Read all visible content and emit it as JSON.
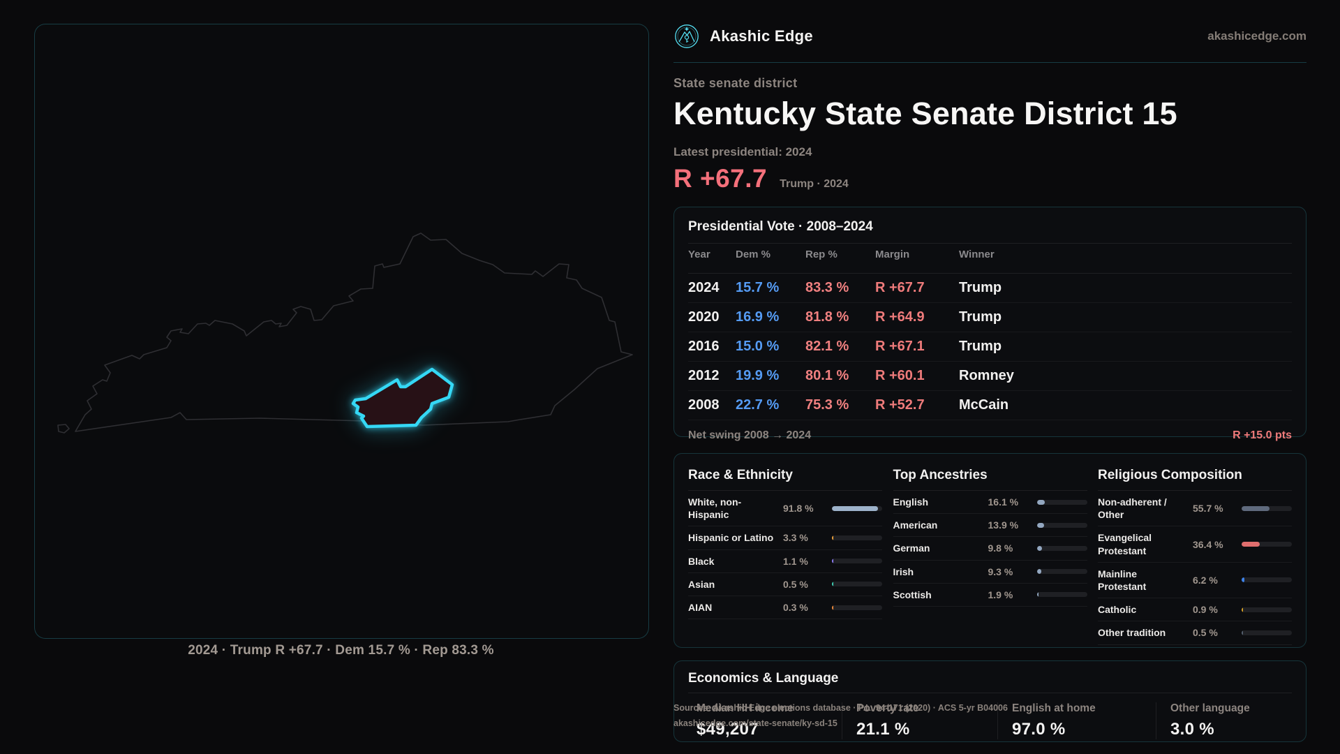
{
  "colors": {
    "accent_cyan": "#35d8f5",
    "dem_blue": "#559bf3",
    "rep_red": "#f08080",
    "margin_red": "#f4707b"
  },
  "header": {
    "brand": "Akashic Edge",
    "site": "akashicedge.com"
  },
  "hero": {
    "kicker": "State senate district",
    "title": "Kentucky State Senate District 15",
    "latest_label": "Latest presidential: 2024",
    "margin_value": "R +67.7",
    "margin_note": "Trump · 2024"
  },
  "map": {
    "caption": "2024 · Trump R +67.7 · Dem 15.7 % · Rep 83.3 %"
  },
  "pres_table": {
    "title": "Presidential Vote · 2008–2024",
    "columns": [
      "Year",
      "Dem %",
      "Rep %",
      "Margin",
      "Winner"
    ],
    "rows": [
      {
        "year": "2024",
        "dem": "15.7 %",
        "rep": "83.3 %",
        "margin": "R +67.7",
        "winner": "Trump"
      },
      {
        "year": "2020",
        "dem": "16.9 %",
        "rep": "81.8 %",
        "margin": "R +64.9",
        "winner": "Trump"
      },
      {
        "year": "2016",
        "dem": "15.0 %",
        "rep": "82.1 %",
        "margin": "R +67.1",
        "winner": "Trump"
      },
      {
        "year": "2012",
        "dem": "19.9 %",
        "rep": "80.1 %",
        "margin": "R +60.1",
        "winner": "Romney"
      },
      {
        "year": "2008",
        "dem": "22.7 %",
        "rep": "75.3 %",
        "margin": "R +52.7",
        "winner": "McCain"
      }
    ],
    "footer_label": "Net swing 2008 → 2024",
    "footer_value": "R +15.0 pts"
  },
  "demographics": {
    "race": {
      "title": "Race & Ethnicity",
      "rows": [
        {
          "label": "White, non-Hispanic",
          "value": "91.8 %",
          "pct": 91.8,
          "color": "#9db2ca"
        },
        {
          "label": "Hispanic or Latino",
          "value": "3.3 %",
          "pct": 3.3,
          "color": "#efa33c"
        },
        {
          "label": "Black",
          "value": "1.1 %",
          "pct": 1.1,
          "color": "#8d7bf2"
        },
        {
          "label": "Asian",
          "value": "0.5 %",
          "pct": 0.5,
          "color": "#3fd0b4"
        },
        {
          "label": "AIAN",
          "value": "0.3 %",
          "pct": 0.3,
          "color": "#ef8b3c"
        }
      ]
    },
    "ancestry": {
      "title": "Top Ancestries",
      "rows": [
        {
          "label": "English",
          "value": "16.1 %",
          "pct": 16.1,
          "color": "#93a7c0"
        },
        {
          "label": "American",
          "value": "13.9 %",
          "pct": 13.9,
          "color": "#93a7c0"
        },
        {
          "label": "German",
          "value": "9.8 %",
          "pct": 9.8,
          "color": "#93a7c0"
        },
        {
          "label": "Irish",
          "value": "9.3 %",
          "pct": 9.3,
          "color": "#93a7c0"
        },
        {
          "label": "Scottish",
          "value": "1.9 %",
          "pct": 1.9,
          "color": "#93a7c0"
        }
      ]
    },
    "religion": {
      "title": "Religious Composition",
      "rows": [
        {
          "label": "Non-adherent / Other",
          "value": "55.7 %",
          "pct": 55.7,
          "color": "#5f6a7d"
        },
        {
          "label": "Evangelical Protestant",
          "value": "36.4 %",
          "pct": 36.4,
          "color": "#e06e6e"
        },
        {
          "label": "Mainline Protestant",
          "value": "6.2 %",
          "pct": 6.2,
          "color": "#3e82e8"
        },
        {
          "label": "Catholic",
          "value": "0.9 %",
          "pct": 0.9,
          "color": "#d9a426"
        },
        {
          "label": "Other tradition",
          "value": "0.5 %",
          "pct": 0.5,
          "color": "#55606e"
        }
      ]
    }
  },
  "economics": {
    "title": "Economics & Language",
    "stats": [
      {
        "label": "Median HH income",
        "value": "$49,207"
      },
      {
        "label": "Poverty rate",
        "value": "21.1 %"
      },
      {
        "label": "English at home",
        "value": "97.0 %"
      },
      {
        "label": "Other language",
        "value": "3.0 %"
      }
    ]
  },
  "sources": {
    "line1": "Sources: Akashic Edge elections database · P.L. 94-171 (2020) · ACS 5-yr B04006",
    "line2": "akashicedge.com/state-senate/ky-sd-15"
  }
}
